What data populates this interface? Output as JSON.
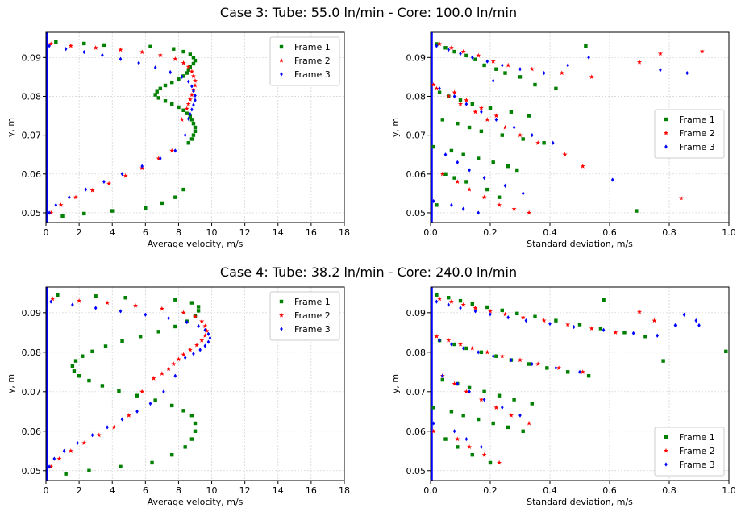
{
  "titles": {
    "top": "Case 3: Tube: 55.0 ln/min - Core: 100.0 ln/min",
    "bottom": "Case 4: Tube: 38.2 ln/min - Core: 240.0 ln/min"
  },
  "chart_data": [
    {
      "type": "scatter",
      "id": "case3-velocity",
      "xlabel": "Average velocity, m/s",
      "ylabel": "y, m",
      "xlim": [
        0,
        18
      ],
      "ylim": [
        0.0475,
        0.0965
      ],
      "xticks": [
        0,
        2,
        4,
        6,
        8,
        10,
        12,
        14,
        16,
        18
      ],
      "yticks": [
        0.05,
        0.06,
        0.07,
        0.08,
        0.09
      ],
      "grid": true,
      "legend": "top-right",
      "series": [
        {
          "name": "Frame 1",
          "color": "#008000",
          "marker": "square",
          "x": [
            0.6,
            2.3,
            3.5,
            6.3,
            7.7,
            8.3,
            8.7,
            8.9,
            9.0,
            8.9,
            8.7,
            8.6,
            8.5,
            8.3,
            8.0,
            7.6,
            7.2,
            6.9,
            6.7,
            6.6,
            6.8,
            7.2,
            7.6,
            8.0,
            8.3,
            8.5,
            8.7,
            8.8,
            8.9,
            9.0,
            9.0,
            8.9,
            8.8,
            8.6,
            8.3,
            7.8,
            7.0,
            6.0,
            4.0,
            2.3,
            1.0
          ],
          "y": [
            0.094,
            0.0936,
            0.0932,
            0.0928,
            0.0922,
            0.0915,
            0.0908,
            0.09,
            0.0892,
            0.0884,
            0.0876,
            0.0868,
            0.086,
            0.0852,
            0.0844,
            0.0836,
            0.0828,
            0.082,
            0.0812,
            0.0804,
            0.0796,
            0.0788,
            0.078,
            0.0772,
            0.0764,
            0.0756,
            0.0748,
            0.074,
            0.073,
            0.072,
            0.071,
            0.07,
            0.069,
            0.068,
            0.056,
            0.054,
            0.0525,
            0.0512,
            0.0505,
            0.0498,
            0.0492
          ]
        },
        {
          "name": "Frame 2",
          "color": "#ff0000",
          "marker": "star",
          "x": [
            0.3,
            1.5,
            3.0,
            4.5,
            5.8,
            6.9,
            7.8,
            8.3,
            8.6,
            8.8,
            8.9,
            9.0,
            9.0,
            8.9,
            8.8,
            8.7,
            8.6,
            8.5,
            8.2,
            7.6,
            6.8,
            5.8,
            4.8,
            3.8,
            2.8,
            1.8,
            0.9,
            0.3
          ],
          "y": [
            0.0935,
            0.093,
            0.0925,
            0.092,
            0.0914,
            0.0906,
            0.0896,
            0.0886,
            0.0876,
            0.0864,
            0.0852,
            0.084,
            0.0828,
            0.0816,
            0.0804,
            0.0792,
            0.078,
            0.0768,
            0.074,
            0.066,
            0.064,
            0.0615,
            0.0595,
            0.0575,
            0.0558,
            0.054,
            0.052,
            0.05
          ]
        },
        {
          "name": "Frame 3",
          "color": "#0000ff",
          "marker": "diamond",
          "x": [
            0.2,
            1.2,
            2.3,
            3.4,
            4.5,
            5.6,
            6.6,
            7.5,
            8.2,
            8.6,
            8.8,
            8.9,
            9.0,
            9.0,
            8.9,
            8.8,
            8.7,
            8.6,
            8.4,
            7.8,
            6.9,
            5.8,
            4.6,
            3.5,
            2.4,
            1.4,
            0.6,
            0.2
          ],
          "y": [
            0.093,
            0.0922,
            0.0914,
            0.0906,
            0.0896,
            0.0886,
            0.0874,
            0.0862,
            0.085,
            0.0838,
            0.0826,
            0.0814,
            0.0802,
            0.079,
            0.0778,
            0.0766,
            0.0754,
            0.0742,
            0.07,
            0.066,
            0.064,
            0.062,
            0.06,
            0.058,
            0.056,
            0.054,
            0.052,
            0.05
          ]
        }
      ]
    },
    {
      "type": "scatter",
      "id": "case3-stddev",
      "xlabel": "Standard deviation, m/s",
      "ylabel": "y, m",
      "xlim": [
        0,
        1.0
      ],
      "ylim": [
        0.0475,
        0.0965
      ],
      "xticks": [
        0.0,
        0.2,
        0.4,
        0.6,
        0.8,
        1.0
      ],
      "yticks": [
        0.05,
        0.06,
        0.07,
        0.08,
        0.09
      ],
      "grid": true,
      "legend": "center-right",
      "series": [
        {
          "name": "Frame 1",
          "color": "#008000",
          "marker": "square",
          "x": [
            0.02,
            0.05,
            0.08,
            0.12,
            0.15,
            0.18,
            0.22,
            0.25,
            0.3,
            0.35,
            0.42,
            0.52,
            0.69,
            0.03,
            0.06,
            0.1,
            0.14,
            0.2,
            0.27,
            0.33,
            0.04,
            0.09,
            0.13,
            0.17,
            0.24,
            0.31,
            0.38,
            0.01,
            0.07,
            0.11,
            0.16,
            0.21,
            0.26,
            0.29,
            0.05,
            0.08,
            0.12,
            0.19,
            0.23,
            0.02
          ],
          "y": [
            0.0935,
            0.0925,
            0.0915,
            0.0905,
            0.0895,
            0.088,
            0.087,
            0.086,
            0.085,
            0.083,
            0.082,
            0.093,
            0.0505,
            0.081,
            0.08,
            0.079,
            0.078,
            0.077,
            0.076,
            0.075,
            0.074,
            0.073,
            0.072,
            0.071,
            0.07,
            0.069,
            0.068,
            0.067,
            0.066,
            0.065,
            0.064,
            0.063,
            0.062,
            0.061,
            0.06,
            0.059,
            0.058,
            0.056,
            0.054,
            0.052
          ]
        },
        {
          "name": "Frame 2",
          "color": "#ff0000",
          "marker": "star",
          "x": [
            0.03,
            0.07,
            0.11,
            0.16,
            0.21,
            0.26,
            0.34,
            0.44,
            0.54,
            0.7,
            0.77,
            0.91,
            0.84,
            0.02,
            0.06,
            0.1,
            0.15,
            0.19,
            0.25,
            0.3,
            0.36,
            0.45,
            0.51,
            0.04,
            0.09,
            0.13,
            0.18,
            0.23,
            0.28,
            0.33,
            0.01,
            0.08,
            0.12,
            0.17,
            0.22
          ],
          "y": [
            0.0935,
            0.0925,
            0.0915,
            0.0905,
            0.089,
            0.088,
            0.087,
            0.086,
            0.085,
            0.0888,
            0.091,
            0.0916,
            0.0538,
            0.082,
            0.08,
            0.078,
            0.076,
            0.074,
            0.072,
            0.07,
            0.068,
            0.065,
            0.062,
            0.06,
            0.058,
            0.056,
            0.054,
            0.052,
            0.051,
            0.05,
            0.083,
            0.081,
            0.079,
            0.077,
            0.075
          ]
        },
        {
          "name": "Frame 3",
          "color": "#0000ff",
          "marker": "diamond",
          "x": [
            0.02,
            0.06,
            0.1,
            0.14,
            0.19,
            0.24,
            0.3,
            0.38,
            0.46,
            0.53,
            0.61,
            0.77,
            0.86,
            0.03,
            0.08,
            0.12,
            0.17,
            0.22,
            0.28,
            0.34,
            0.41,
            0.05,
            0.09,
            0.13,
            0.18,
            0.25,
            0.31,
            0.01,
            0.07,
            0.11,
            0.16,
            0.21
          ],
          "y": [
            0.093,
            0.092,
            0.091,
            0.09,
            0.089,
            0.088,
            0.087,
            0.086,
            0.088,
            0.09,
            0.0585,
            0.0868,
            0.086,
            0.082,
            0.08,
            0.078,
            0.076,
            0.074,
            0.072,
            0.07,
            0.068,
            0.065,
            0.063,
            0.061,
            0.059,
            0.057,
            0.055,
            0.053,
            0.052,
            0.051,
            0.05,
            0.084
          ]
        }
      ]
    },
    {
      "type": "scatter",
      "id": "case4-velocity",
      "xlabel": "Average velocity, m/s",
      "ylabel": "y, m",
      "xlim": [
        0,
        18
      ],
      "ylim": [
        0.0475,
        0.0965
      ],
      "xticks": [
        0,
        2,
        4,
        6,
        8,
        10,
        12,
        14,
        16,
        18
      ],
      "yticks": [
        0.05,
        0.06,
        0.07,
        0.08,
        0.09
      ],
      "grid": true,
      "legend": "top-right",
      "series": [
        {
          "name": "Frame 1",
          "color": "#008000",
          "marker": "square",
          "x": [
            0.7,
            3.0,
            4.8,
            7.8,
            8.8,
            9.2,
            9.2,
            9.0,
            8.5,
            7.8,
            6.8,
            5.7,
            4.6,
            3.6,
            2.8,
            2.2,
            1.8,
            1.6,
            1.7,
            2.0,
            2.6,
            3.4,
            4.4,
            5.5,
            6.6,
            7.6,
            8.3,
            8.8,
            9.0,
            9.0,
            8.8,
            8.4,
            7.6,
            6.4,
            4.5,
            2.6,
            1.2
          ],
          "y": [
            0.0945,
            0.0942,
            0.0938,
            0.0933,
            0.0925,
            0.0915,
            0.0905,
            0.0892,
            0.0878,
            0.0865,
            0.0852,
            0.084,
            0.0828,
            0.0815,
            0.0802,
            0.079,
            0.0778,
            0.0765,
            0.0752,
            0.074,
            0.0728,
            0.0715,
            0.0702,
            0.069,
            0.0678,
            0.0665,
            0.0652,
            0.064,
            0.062,
            0.06,
            0.058,
            0.056,
            0.054,
            0.052,
            0.051,
            0.05,
            0.0492
          ]
        },
        {
          "name": "Frame 2",
          "color": "#ff0000",
          "marker": "star",
          "x": [
            0.4,
            2.0,
            3.7,
            5.4,
            7.0,
            8.3,
            9.0,
            9.4,
            9.6,
            9.7,
            9.6,
            9.4,
            9.1,
            8.7,
            8.3,
            8.0,
            7.7,
            7.4,
            7.0,
            6.5,
            5.8,
            5.0,
            4.1,
            3.2,
            2.3,
            1.5,
            0.8,
            0.3
          ],
          "y": [
            0.0935,
            0.093,
            0.0925,
            0.0918,
            0.091,
            0.09,
            0.089,
            0.0878,
            0.0866,
            0.0854,
            0.0842,
            0.083,
            0.0818,
            0.0806,
            0.0794,
            0.0782,
            0.077,
            0.0758,
            0.0746,
            0.0734,
            0.07,
            0.064,
            0.061,
            0.059,
            0.057,
            0.055,
            0.053,
            0.051
          ]
        },
        {
          "name": "Frame 3",
          "color": "#0000ff",
          "marker": "diamond",
          "x": [
            0.3,
            1.6,
            3.0,
            4.5,
            6.0,
            7.4,
            8.5,
            9.2,
            9.6,
            9.8,
            9.9,
            9.8,
            9.6,
            9.3,
            8.9,
            8.4,
            7.8,
            7.1,
            6.3,
            5.5,
            4.6,
            3.7,
            2.8,
            1.9,
            1.1,
            0.5,
            0.2
          ],
          "y": [
            0.0928,
            0.092,
            0.0912,
            0.0904,
            0.0895,
            0.0886,
            0.0876,
            0.0866,
            0.0856,
            0.0846,
            0.0836,
            0.0826,
            0.0816,
            0.0806,
            0.0796,
            0.0786,
            0.074,
            0.07,
            0.067,
            0.065,
            0.063,
            0.061,
            0.059,
            0.057,
            0.055,
            0.053,
            0.051
          ]
        }
      ]
    },
    {
      "type": "scatter",
      "id": "case4-stddev",
      "xlabel": "Standard deviation, m/s",
      "ylabel": "y, m",
      "xlim": [
        0,
        1.0
      ],
      "ylim": [
        0.0475,
        0.0965
      ],
      "xticks": [
        0.0,
        0.2,
        0.4,
        0.6,
        0.8,
        1.0
      ],
      "yticks": [
        0.05,
        0.06,
        0.07,
        0.08,
        0.09
      ],
      "grid": true,
      "legend": "bottom-right",
      "series": [
        {
          "name": "Frame 1",
          "color": "#008000",
          "marker": "square",
          "x": [
            0.02,
            0.06,
            0.1,
            0.14,
            0.19,
            0.24,
            0.29,
            0.35,
            0.42,
            0.5,
            0.57,
            0.65,
            0.72,
            0.78,
            0.99,
            0.03,
            0.08,
            0.12,
            0.17,
            0.22,
            0.27,
            0.33,
            0.39,
            0.46,
            0.53,
            0.04,
            0.09,
            0.13,
            0.18,
            0.23,
            0.28,
            0.34,
            0.01,
            0.07,
            0.11,
            0.16,
            0.21,
            0.26,
            0.31,
            0.05,
            0.09,
            0.14,
            0.2,
            0.58
          ],
          "y": [
            0.0945,
            0.0938,
            0.093,
            0.0922,
            0.0914,
            0.0906,
            0.0898,
            0.089,
            0.088,
            0.087,
            0.086,
            0.085,
            0.084,
            0.0778,
            0.0802,
            0.083,
            0.082,
            0.081,
            0.08,
            0.079,
            0.078,
            0.077,
            0.076,
            0.075,
            0.074,
            0.073,
            0.072,
            0.071,
            0.07,
            0.069,
            0.068,
            0.067,
            0.066,
            0.065,
            0.064,
            0.063,
            0.062,
            0.061,
            0.06,
            0.058,
            0.056,
            0.054,
            0.052,
            0.0932
          ]
        },
        {
          "name": "Frame 2",
          "color": "#ff0000",
          "marker": "star",
          "x": [
            0.03,
            0.07,
            0.11,
            0.15,
            0.2,
            0.25,
            0.31,
            0.38,
            0.46,
            0.54,
            0.62,
            0.7,
            0.75,
            0.82,
            0.02,
            0.06,
            0.1,
            0.14,
            0.19,
            0.24,
            0.3,
            0.36,
            0.43,
            0.51,
            0.04,
            0.08,
            0.12,
            0.17,
            0.22,
            0.27,
            0.33,
            0.01,
            0.09,
            0.13,
            0.18,
            0.23
          ],
          "y": [
            0.0935,
            0.0928,
            0.092,
            0.0912,
            0.0904,
            0.0896,
            0.0888,
            0.088,
            0.087,
            0.086,
            0.085,
            0.0902,
            0.088,
            0.0548,
            0.084,
            0.083,
            0.082,
            0.081,
            0.08,
            0.079,
            0.078,
            0.077,
            0.076,
            0.075,
            0.074,
            0.072,
            0.07,
            0.068,
            0.066,
            0.064,
            0.062,
            0.06,
            0.058,
            0.056,
            0.054,
            0.052
          ]
        },
        {
          "name": "Frame 3",
          "color": "#0000ff",
          "marker": "diamond",
          "x": [
            0.02,
            0.06,
            0.1,
            0.15,
            0.2,
            0.26,
            0.32,
            0.4,
            0.48,
            0.58,
            0.68,
            0.76,
            0.82,
            0.85,
            0.89,
            0.9,
            0.03,
            0.07,
            0.11,
            0.16,
            0.21,
            0.27,
            0.34,
            0.42,
            0.5,
            0.04,
            0.09,
            0.13,
            0.18,
            0.24,
            0.3,
            0.01,
            0.08,
            0.12,
            0.17
          ],
          "y": [
            0.0928,
            0.092,
            0.0912,
            0.0904,
            0.0896,
            0.0888,
            0.088,
            0.0872,
            0.0864,
            0.0856,
            0.0848,
            0.0842,
            0.0868,
            0.0895,
            0.088,
            0.0868,
            0.083,
            0.082,
            0.081,
            0.08,
            0.079,
            0.078,
            0.077,
            0.076,
            0.075,
            0.074,
            0.072,
            0.07,
            0.068,
            0.066,
            0.064,
            0.062,
            0.06,
            0.058,
            0.056
          ]
        }
      ]
    }
  ]
}
